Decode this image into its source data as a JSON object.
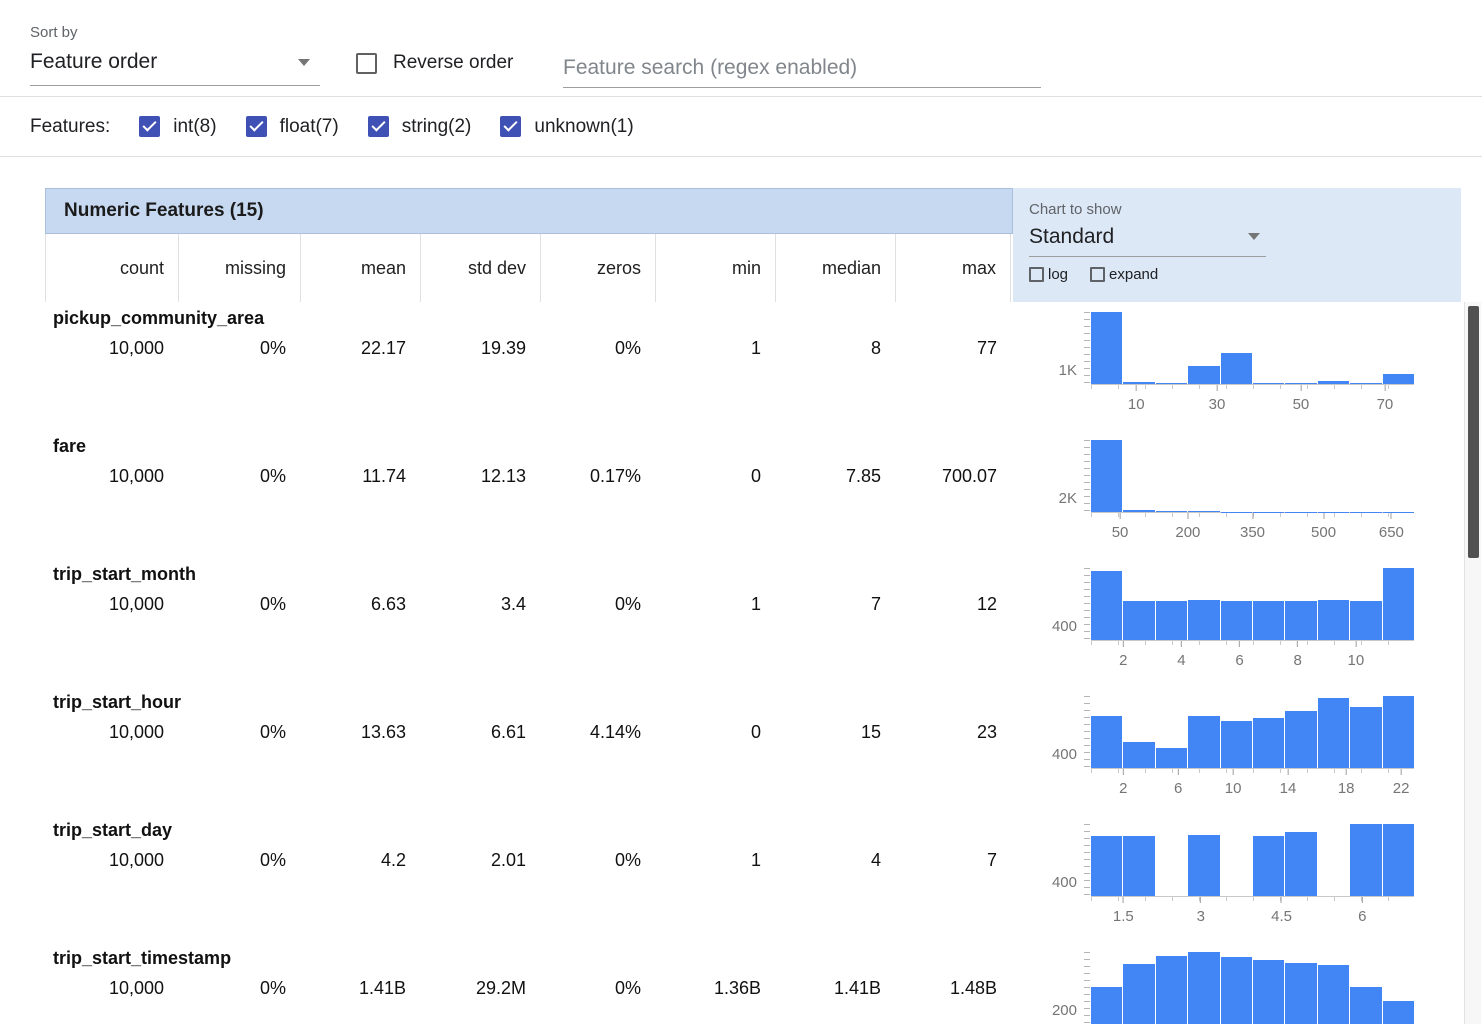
{
  "controls": {
    "sort_by_label": "Sort by",
    "sort_by_value": "Feature order",
    "reverse_order_label": "Reverse order",
    "search_placeholder": "Feature search (regex enabled)"
  },
  "features_bar": {
    "label": "Features:",
    "filters": [
      {
        "label": "int(8)",
        "checked": true
      },
      {
        "label": "float(7)",
        "checked": true
      },
      {
        "label": "string(2)",
        "checked": true
      },
      {
        "label": "unknown(1)",
        "checked": true
      }
    ]
  },
  "colors": {
    "accent": "#3f51b5",
    "bar": "#4285f4",
    "header_blue": "#c7d9f1",
    "panel_blue": "#dde8f7"
  },
  "table": {
    "title": "Numeric Features (15)",
    "chart_controls": {
      "label": "Chart to show",
      "selected": "Standard",
      "log_label": "log",
      "expand_label": "expand"
    },
    "columns": [
      "count",
      "missing",
      "mean",
      "std dev",
      "zeros",
      "min",
      "median",
      "max"
    ],
    "rows": [
      {
        "name": "pickup_community_area",
        "values": [
          "10,000",
          "0%",
          "22.17",
          "19.39",
          "0%",
          "1",
          "8",
          "77"
        ],
        "chart": {
          "type": "bar",
          "y_label": "1K",
          "bars": [
            4100,
            120,
            60,
            1000,
            1760,
            60,
            60,
            180,
            60,
            590
          ],
          "x_ticks": [
            {
              "label": "10",
              "pct": 14
            },
            {
              "label": "30",
              "pct": 39
            },
            {
              "label": "50",
              "pct": 65
            },
            {
              "label": "70",
              "pct": 91
            }
          ]
        }
      },
      {
        "name": "fare",
        "values": [
          "10,000",
          "0%",
          "11.74",
          "12.13",
          "0.17%",
          "0",
          "7.85",
          "700.07"
        ],
        "chart": {
          "type": "bar",
          "y_label": "2K",
          "bars": [
            9500,
            300,
            130,
            100,
            60,
            50,
            40,
            35,
            25,
            20
          ],
          "x_ticks": [
            {
              "label": "50",
              "pct": 9
            },
            {
              "label": "200",
              "pct": 30
            },
            {
              "label": "350",
              "pct": 50
            },
            {
              "label": "500",
              "pct": 72
            },
            {
              "label": "650",
              "pct": 93
            }
          ]
        }
      },
      {
        "name": "trip_start_month",
        "values": [
          "10,000",
          "0%",
          "6.63",
          "3.4",
          "0%",
          "1",
          "7",
          "12"
        ],
        "chart": {
          "type": "bar",
          "y_label": "400",
          "bars": [
            1500,
            840,
            855,
            865,
            855,
            845,
            855,
            875,
            850,
            1560
          ],
          "x_ticks": [
            {
              "label": "2",
              "pct": 10
            },
            {
              "label": "4",
              "pct": 28
            },
            {
              "label": "6",
              "pct": 46
            },
            {
              "label": "8",
              "pct": 64
            },
            {
              "label": "10",
              "pct": 82
            }
          ]
        }
      },
      {
        "name": "trip_start_hour",
        "values": [
          "10,000",
          "0%",
          "13.63",
          "6.61",
          "4.14%",
          "0",
          "15",
          "23"
        ],
        "chart": {
          "type": "bar",
          "y_label": "400",
          "bars": [
            905,
            460,
            355,
            905,
            820,
            880,
            1000,
            1220,
            1060,
            1260
          ],
          "x_ticks": [
            {
              "label": "2",
              "pct": 10
            },
            {
              "label": "6",
              "pct": 27
            },
            {
              "label": "10",
              "pct": 44
            },
            {
              "label": "14",
              "pct": 61
            },
            {
              "label": "18",
              "pct": 79
            },
            {
              "label": "22",
              "pct": 96
            }
          ]
        }
      },
      {
        "name": "trip_start_day",
        "values": [
          "10,000",
          "0%",
          "4.2",
          "2.01",
          "0%",
          "1",
          "4",
          "7"
        ],
        "chart": {
          "type": "bar",
          "y_label": "400",
          "bars": [
            1420,
            1420,
            0,
            1440,
            0,
            1420,
            1500,
            0,
            1700,
            1700
          ],
          "x_ticks": [
            {
              "label": "1.5",
              "pct": 10
            },
            {
              "label": "3",
              "pct": 34
            },
            {
              "label": "4.5",
              "pct": 59
            },
            {
              "label": "6",
              "pct": 84
            }
          ]
        }
      },
      {
        "name": "trip_start_timestamp",
        "values": [
          "10,000",
          "0%",
          "1.41B",
          "29.2M",
          "0%",
          "1.36B",
          "1.41B",
          "1.48B"
        ],
        "chart": {
          "type": "bar",
          "y_label": "200",
          "bars": [
            750,
            1220,
            1390,
            1470,
            1370,
            1300,
            1250,
            1200,
            750,
            470
          ],
          "x_ticks": []
        }
      }
    ]
  }
}
